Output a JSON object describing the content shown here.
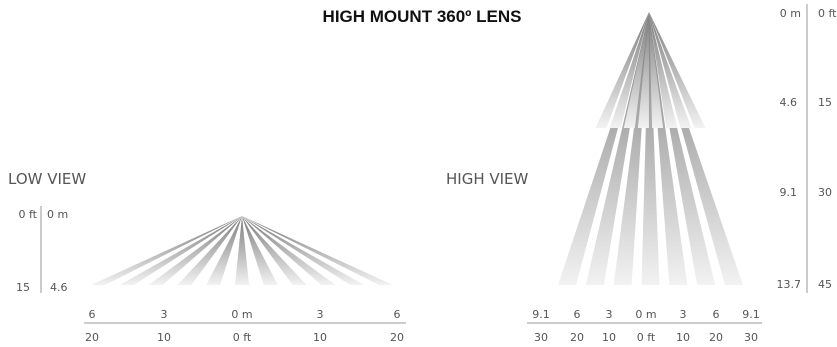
{
  "title": "HIGH MOUNT 360º LENS",
  "low_view": {
    "label": "LOW VIEW",
    "height_ft": [
      "0 ft",
      "15"
    ],
    "height_m": [
      "0 m",
      "4.6"
    ],
    "range_m": [
      "6",
      "3",
      "0 m",
      "3",
      "6"
    ],
    "range_ft": [
      "20",
      "10",
      "0 ft",
      "10",
      "20"
    ],
    "beam_count": 11,
    "beam_color_top": "#7a7a7a",
    "beam_color_bottom": "#f2f2f2"
  },
  "high_view": {
    "label": "HIGH VIEW",
    "height_m": [
      "0 m",
      "4.6",
      "9.1",
      "13.7"
    ],
    "height_ft": [
      "0 ft",
      "15",
      "30",
      "45"
    ],
    "range_m": [
      "9.1",
      "6",
      "3",
      "0 m",
      "3",
      "6",
      "9.1"
    ],
    "range_ft": [
      "30",
      "20",
      "10",
      "0 ft",
      "10",
      "20",
      "30"
    ],
    "outer_beam_count": 7,
    "inner_beam_count": 8,
    "beam_color_top": "#7a7a7a",
    "beam_color_bottom": "#f2f2f2"
  }
}
